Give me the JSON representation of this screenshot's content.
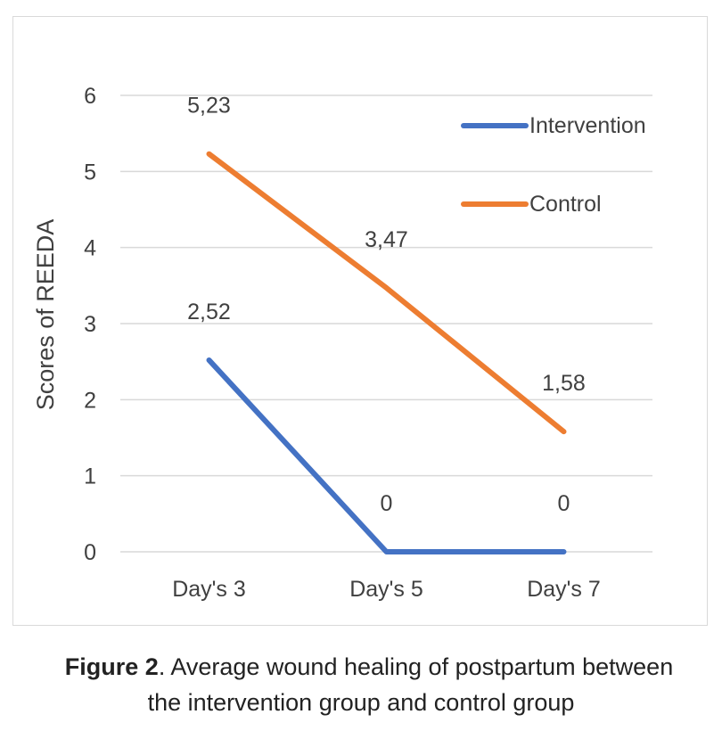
{
  "chart_data": {
    "type": "line",
    "categories": [
      "Day's 3",
      "Day's 5",
      "Day's 7"
    ],
    "series": [
      {
        "name": "Intervention",
        "values": [
          2.52,
          0,
          0
        ],
        "labels": [
          "2,52",
          "0",
          "0"
        ],
        "color": "#4472C4"
      },
      {
        "name": "Control",
        "values": [
          5.23,
          3.47,
          1.58
        ],
        "labels": [
          "5,23",
          "3,47",
          "1,58"
        ],
        "color": "#ED7D31"
      }
    ],
    "title": "",
    "xlabel": "",
    "ylabel": "Scores of REEDA",
    "ylim": [
      0,
      6
    ],
    "yticks": [
      "0",
      "1",
      "2",
      "3",
      "4",
      "5",
      "6"
    ],
    "grid": true,
    "legend": "top-right",
    "gridColor": "#d9d9d9",
    "textColor": "#404040"
  },
  "caption": {
    "label": "Figure 2",
    "text_line1": ". Average wound healing of postpartum between",
    "text_line2": "the intervention group and control group"
  }
}
